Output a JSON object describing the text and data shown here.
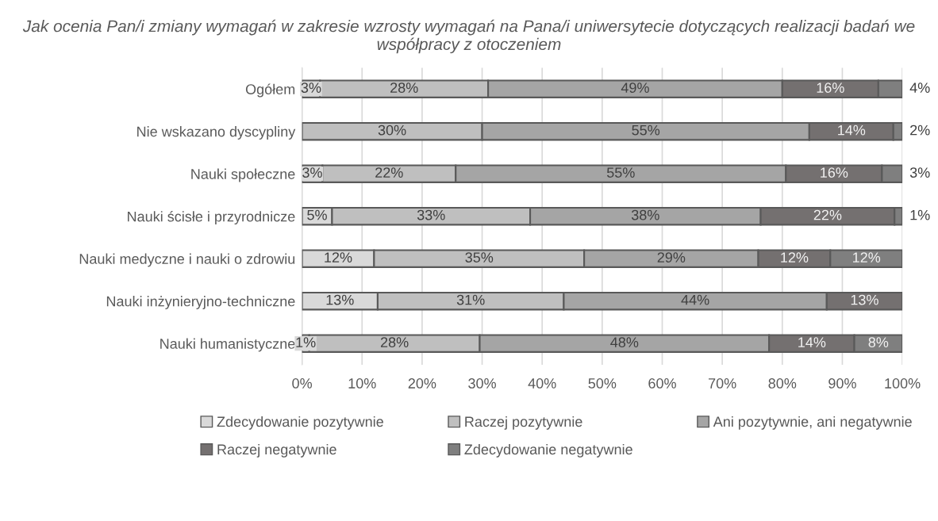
{
  "chart_data": {
    "type": "bar",
    "orientation": "horizontal",
    "stacked": true,
    "title": "Jak ocenia Pan/i zmiany wymagań w zakresie wzrosty wymagań na Pana/i uniwersytecie dotyczących realizacji badań we współpracy z otoczeniem",
    "categories": [
      "Ogółem",
      "Nie wskazano dyscypliny",
      "Nauki społeczne",
      "Nauki ścisłe i przyrodnicze",
      "Nauki medyczne i nauki o zdrowiu",
      "Nauki inżynieryjno-techniczne",
      "Nauki humanistyczne"
    ],
    "series": [
      {
        "name": "Zdecydowanie pozytywnie",
        "color": "#d9d9d9",
        "values": [
          3,
          0,
          3.4,
          5,
          12,
          12.6,
          1.2
        ],
        "value_labels": [
          "3%",
          null,
          "3%",
          "5%",
          "12%",
          "13%",
          "1%"
        ]
      },
      {
        "name": "Raczej pozytywnie",
        "color": "#bfbfbf",
        "values": [
          28,
          30,
          22.2,
          33,
          35,
          31,
          28.4
        ],
        "value_labels": [
          "28%",
          "30%",
          "22%",
          "33%",
          "35%",
          "31%",
          "28%"
        ]
      },
      {
        "name": "Ani pozytywnie, ani negatywnie",
        "color": "#a5a5a5",
        "values": [
          49,
          54.5,
          55,
          38.4,
          29,
          43.8,
          48.2
        ],
        "value_labels": [
          "49%",
          "55%",
          "55%",
          "38%",
          "29%",
          "44%",
          "48%"
        ]
      },
      {
        "name": "Raczej negatywnie",
        "color": "#747070",
        "values": [
          16,
          14,
          16,
          22.3,
          12,
          12.6,
          14.2
        ],
        "value_labels": [
          "16%",
          "14%",
          "16%",
          "22%",
          "12%",
          "13%",
          "14%"
        ]
      },
      {
        "name": "Zdecydowanie negatywnie",
        "color": "#7f7f7f",
        "values": [
          4,
          1.5,
          3.4,
          1.3,
          12,
          0,
          8
        ],
        "value_labels": [
          "4%",
          "2%",
          "3%",
          "1%",
          "12%",
          null,
          "8%"
        ]
      }
    ],
    "xlim": [
      0,
      100
    ],
    "xticks": [
      {
        "value": 0,
        "label": "0%"
      },
      {
        "value": 10,
        "label": "10%"
      },
      {
        "value": 20,
        "label": "20%"
      },
      {
        "value": 30,
        "label": "30%"
      },
      {
        "value": 40,
        "label": "40%"
      },
      {
        "value": 50,
        "label": "50%"
      },
      {
        "value": 60,
        "label": "60%"
      },
      {
        "value": 70,
        "label": "70%"
      },
      {
        "value": 80,
        "label": "80%"
      },
      {
        "value": 90,
        "label": "90%"
      },
      {
        "value": 100,
        "label": "100%"
      }
    ],
    "grid": "x",
    "legend": "bottom"
  }
}
